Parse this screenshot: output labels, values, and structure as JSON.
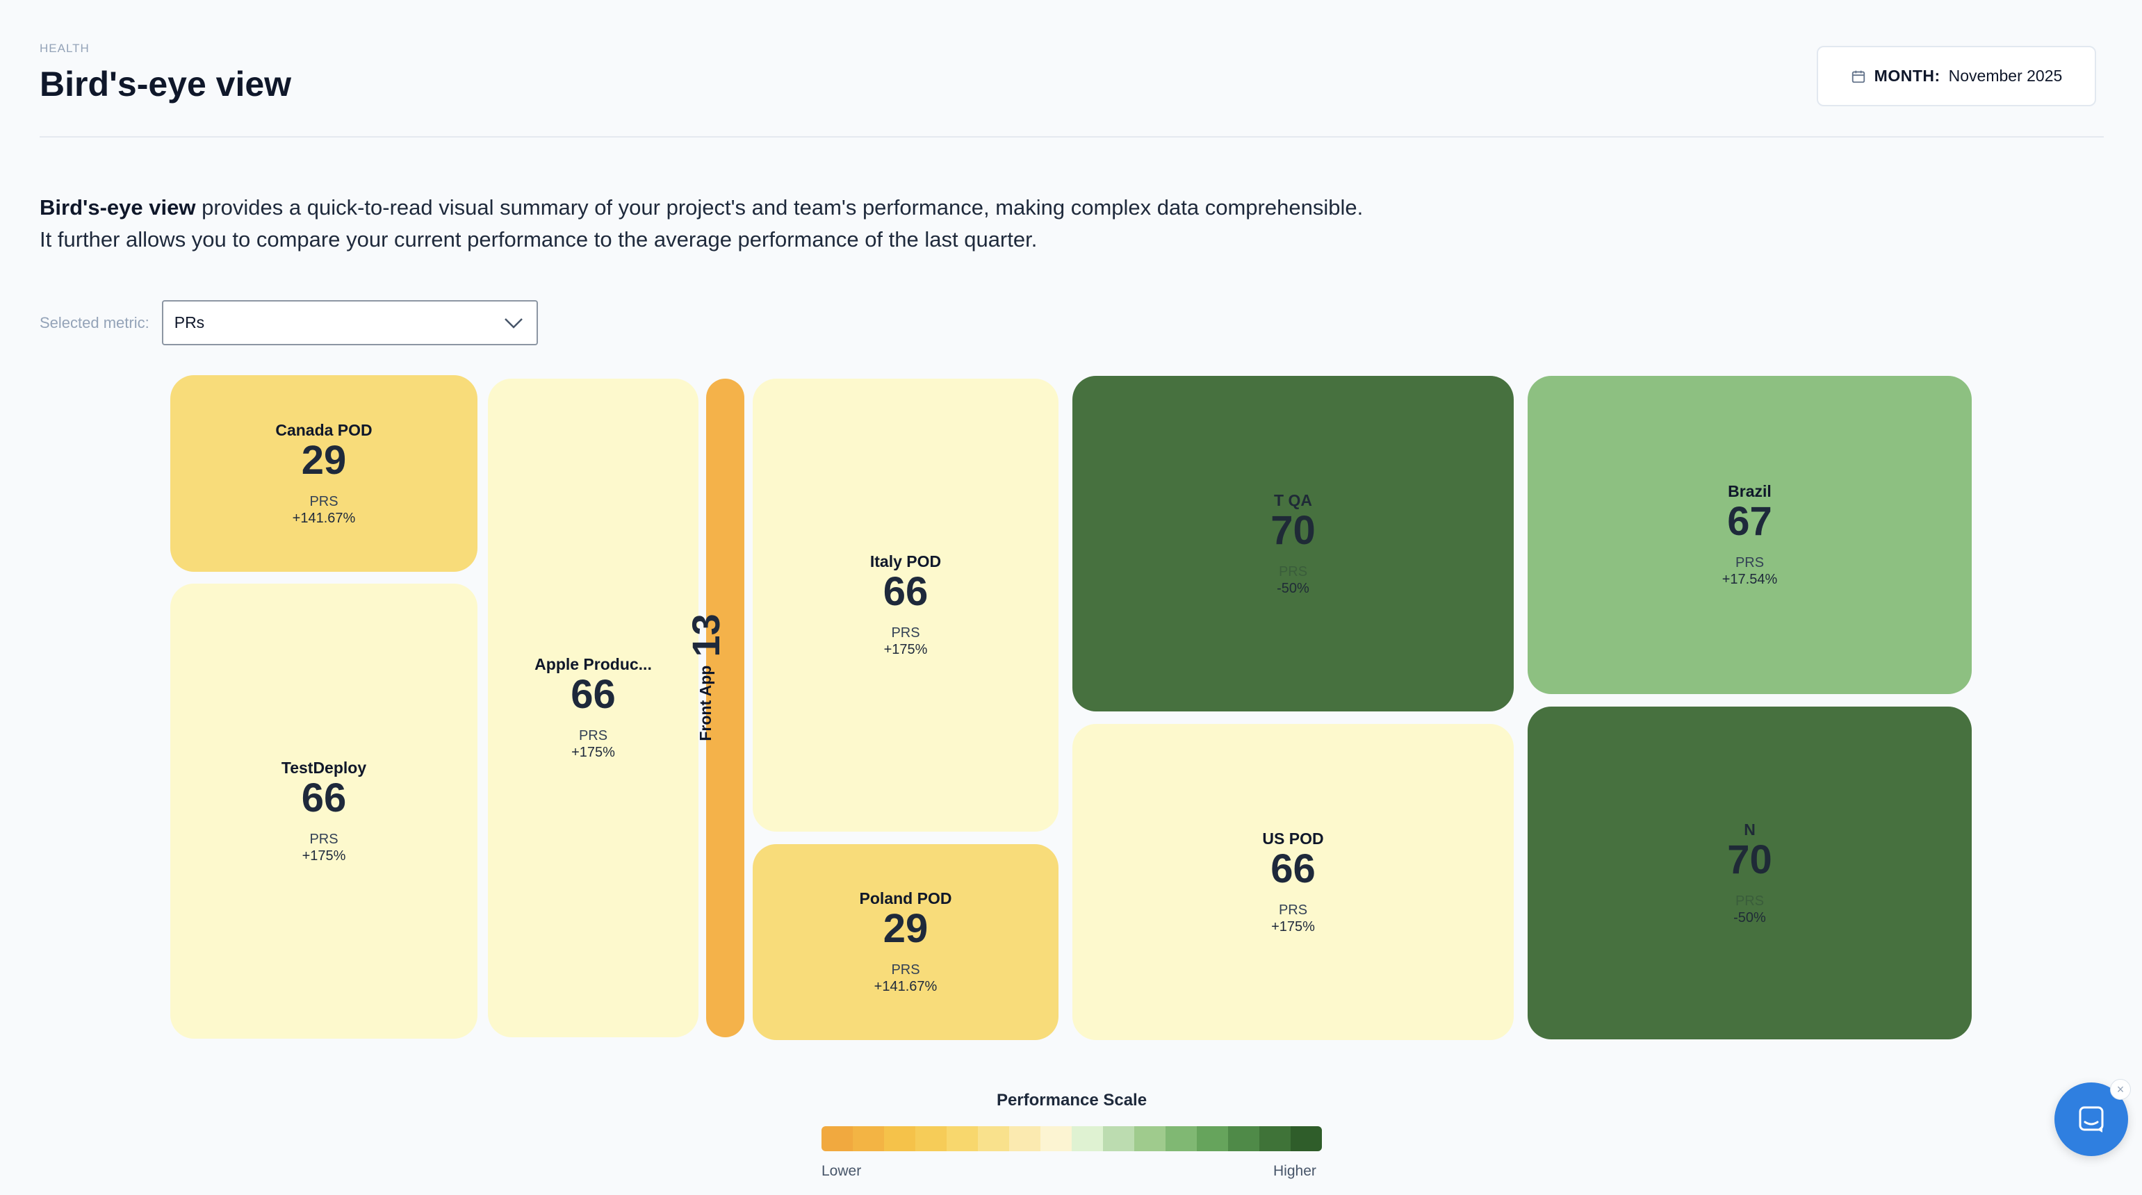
{
  "header": {
    "breadcrumb": "HEALTH",
    "title": "Bird's-eye view",
    "month_label": "MONTH:",
    "month_value": "November 2025"
  },
  "intro": {
    "bold": "Bird's-eye view",
    "line1_rest": " provides a quick-to-read visual summary of your project's and team's performance, making complex data comprehensible.",
    "line2": "It further allows you to compare your current performance to the average performance of the last quarter."
  },
  "metric": {
    "label": "Selected metric:",
    "value": "PRs"
  },
  "tiles": {
    "canada": {
      "name": "Canada POD",
      "value": "29",
      "metric": "PRS",
      "change": "+141.67%"
    },
    "testdeploy": {
      "name": "TestDeploy",
      "value": "66",
      "metric": "PRS",
      "change": "+175%"
    },
    "apple": {
      "name": "Apple Produc...",
      "value": "66",
      "metric": "PRS",
      "change": "+175%"
    },
    "front": {
      "name": "Front App",
      "value": "13"
    },
    "italy": {
      "name": "Italy POD",
      "value": "66",
      "metric": "PRS",
      "change": "+175%"
    },
    "poland": {
      "name": "Poland POD",
      "value": "29",
      "metric": "PRS",
      "change": "+141.67%"
    },
    "tqa": {
      "name": "T QA",
      "value": "70",
      "metric": "PRS",
      "change": "-50%"
    },
    "uspod": {
      "name": "US POD",
      "value": "66",
      "metric": "PRS",
      "change": "+175%"
    },
    "brazil": {
      "name": "Brazil",
      "value": "67",
      "metric": "PRS",
      "change": "+17.54%"
    },
    "n": {
      "name": "N",
      "value": "70",
      "metric": "PRS",
      "change": "-50%"
    }
  },
  "colors": {
    "yellow": "#f8dc7a",
    "pale": "#fdf9cd",
    "orange": "#f4b24a",
    "dark_green": "#47713f",
    "light_green": "#8dc081"
  },
  "scale": {
    "title": "Performance Scale",
    "low": "Lower",
    "high": "Higher",
    "colors": [
      "#f1a93f",
      "#f3b444",
      "#f5c24a",
      "#f6cc58",
      "#f8d76d",
      "#f9e18c",
      "#fbeab0",
      "#fcf4d2",
      "#dff2d2",
      "#bcdcb0",
      "#9fcb8d",
      "#80b873",
      "#66a45c",
      "#4f8a48",
      "#3f7338",
      "#2f5d2a"
    ]
  },
  "chat": {
    "icon": "chat-icon",
    "close": "×"
  }
}
